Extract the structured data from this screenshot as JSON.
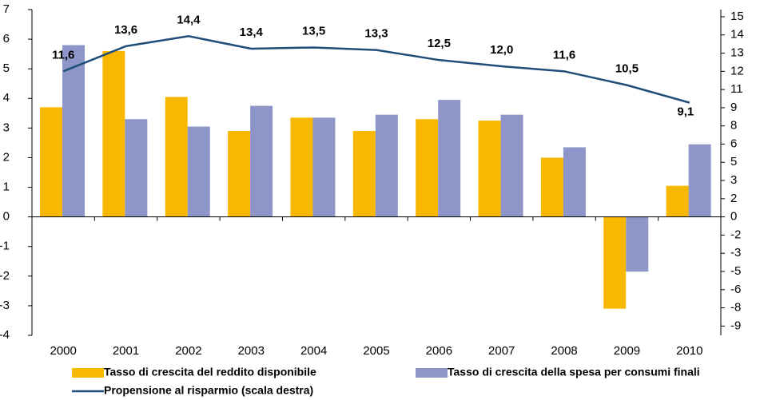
{
  "chart_data": {
    "type": "bar",
    "categories": [
      "2000",
      "2001",
      "2002",
      "2003",
      "2004",
      "2005",
      "2006",
      "2007",
      "2008",
      "2009",
      "2010"
    ],
    "series": [
      {
        "name": "Tasso di crescita del reddito disponibile",
        "color": "#f9b800",
        "values": [
          3.7,
          5.6,
          4.05,
          2.9,
          3.35,
          2.9,
          3.3,
          3.25,
          2.0,
          -3.1,
          1.05
        ]
      },
      {
        "name": "Tasso di crescita della spesa per consumi finali",
        "color": "#8e95c8",
        "values": [
          5.8,
          3.3,
          3.05,
          3.75,
          3.35,
          3.45,
          3.95,
          3.45,
          2.35,
          -1.85,
          2.45
        ]
      },
      {
        "name": "Propensione al risparmio (scala destra)",
        "color": "#1f4e79",
        "type": "line",
        "axis": "y2",
        "values": [
          11.6,
          13.6,
          14.4,
          13.4,
          13.5,
          13.3,
          12.5,
          12.0,
          11.6,
          10.5,
          9.1
        ],
        "value_labels": [
          "11,6",
          "13,6",
          "14,4",
          "13,4",
          "13,5",
          "13,3",
          "12,5",
          "12,0",
          "11,6",
          "10,5",
          "9,1"
        ]
      }
    ],
    "ylim": [
      -4,
      7
    ],
    "yticks": [
      -4,
      -3,
      -2,
      -1,
      0,
      1,
      2,
      3,
      4,
      5,
      6,
      7
    ],
    "y2lim": [
      -9.44,
      16.52
    ],
    "y2ticks": [
      {
        "value": -8.7,
        "label": "-9"
      },
      {
        "value": -7.25,
        "label": "-8"
      },
      {
        "value": -5.8,
        "label": "-6"
      },
      {
        "value": -4.35,
        "label": "-5"
      },
      {
        "value": -2.9,
        "label": "-3"
      },
      {
        "value": -1.45,
        "label": "-2"
      },
      0,
      {
        "value": 1.45,
        "label": "2"
      },
      {
        "value": 2.9,
        "label": "3"
      },
      {
        "value": 4.35,
        "label": "5"
      },
      {
        "value": 5.8,
        "label": "6"
      },
      {
        "value": 7.25,
        "label": "8"
      },
      {
        "value": 8.7,
        "label": "9"
      },
      {
        "value": 10.15,
        "label": "11"
      },
      {
        "value": 11.6,
        "label": "12"
      },
      {
        "value": 13.05,
        "label": "13"
      },
      {
        "value": 14.5,
        "label": "14"
      },
      {
        "value": 15.95,
        "label": "15"
      }
    ]
  }
}
